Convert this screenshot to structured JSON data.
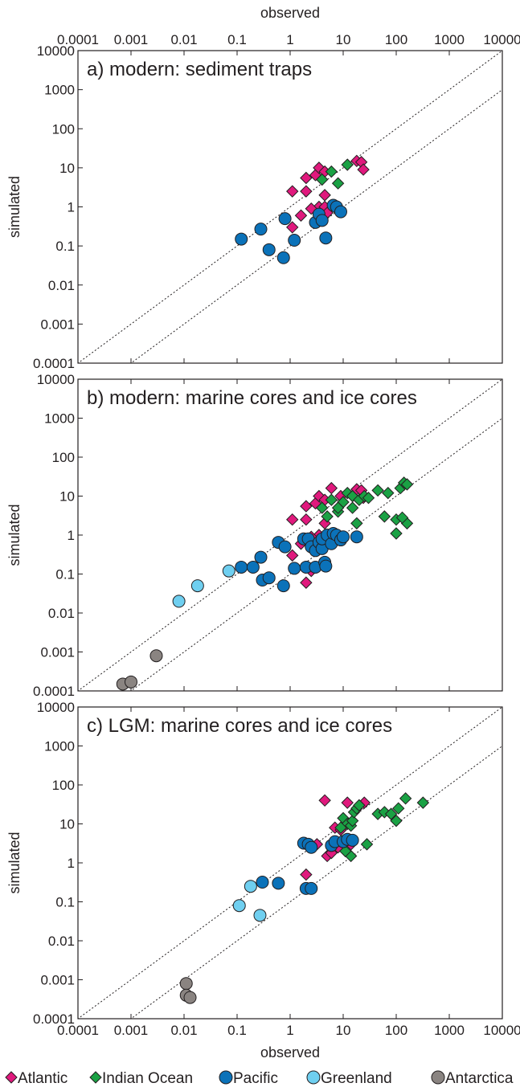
{
  "x_axis_label": "observed",
  "y_axis_label": "simulated",
  "tick_labels": [
    "0.0001",
    "0.001",
    "0.01",
    "0.1",
    "1",
    "10",
    "100",
    "1000",
    "10000"
  ],
  "legend": [
    {
      "name": "Atlantic",
      "marker": "diamond",
      "color": "#e0197d"
    },
    {
      "name": "Indian Ocean",
      "marker": "diamond",
      "color": "#1aa144"
    },
    {
      "name": "Pacific",
      "marker": "circle",
      "color": "#0b72b9"
    },
    {
      "name": "Greenland",
      "marker": "circle",
      "color": "#6fcff0"
    },
    {
      "name": "Antarctica",
      "marker": "circle",
      "color": "#8a8481"
    }
  ],
  "chart_data": [
    {
      "type": "scatter",
      "title": "a) modern: sediment traps",
      "xlabel": "observed",
      "ylabel": "simulated",
      "xscale": "log",
      "yscale": "log",
      "xlim": [
        0.0001,
        10000
      ],
      "ylim": [
        0.0001,
        10000
      ],
      "reference_lines": [
        "dotted 1:1",
        "dotted 1:10"
      ],
      "series": [
        {
          "name": "Atlantic",
          "points": [
            [
              2,
              5.5
            ],
            [
              3,
              6.5
            ],
            [
              3.5,
              10
            ],
            [
              4.5,
              8
            ],
            [
              1.1,
              2.5
            ],
            [
              2,
              2.5
            ],
            [
              3.5,
              1
            ],
            [
              4.5,
              1
            ],
            [
              2.5,
              0.9
            ],
            [
              1.6,
              0.6
            ],
            [
              1.1,
              0.3
            ],
            [
              5,
              0.7
            ],
            [
              4.5,
              2
            ],
            [
              18,
              15
            ],
            [
              22,
              14
            ],
            [
              24,
              9
            ]
          ]
        },
        {
          "name": "Indian Ocean",
          "points": [
            [
              6,
              8
            ],
            [
              4,
              5
            ],
            [
              8,
              4
            ],
            [
              12,
              12
            ]
          ]
        },
        {
          "name": "Pacific",
          "points": [
            [
              0.12,
              0.15
            ],
            [
              0.28,
              0.27
            ],
            [
              0.4,
              0.08
            ],
            [
              0.75,
              0.05
            ],
            [
              0.8,
              0.5
            ],
            [
              1.2,
              0.14
            ],
            [
              3,
              0.4
            ],
            [
              3.5,
              0.65
            ],
            [
              4,
              0.45
            ],
            [
              4.7,
              0.16
            ],
            [
              6.5,
              1.1
            ],
            [
              7.5,
              1
            ],
            [
              9,
              0.75
            ]
          ]
        }
      ]
    },
    {
      "type": "scatter",
      "title": "b) modern: marine cores and ice cores",
      "xlabel": "observed",
      "ylabel": "simulated",
      "xscale": "log",
      "yscale": "log",
      "xlim": [
        0.0001,
        10000
      ],
      "ylim": [
        0.0001,
        10000
      ],
      "reference_lines": [
        "dotted 1:1",
        "dotted 1:10"
      ],
      "series": [
        {
          "name": "Atlantic",
          "points": [
            [
              2,
              5.5
            ],
            [
              3,
              6.5
            ],
            [
              3.5,
              10
            ],
            [
              4.5,
              8
            ],
            [
              1.1,
              2.5
            ],
            [
              2,
              2.5
            ],
            [
              3.5,
              1
            ],
            [
              4.5,
              1
            ],
            [
              2.5,
              0.9
            ],
            [
              1.6,
              0.6
            ],
            [
              1.1,
              0.3
            ],
            [
              5,
              0.7
            ],
            [
              4.5,
              2
            ],
            [
              18,
              15
            ],
            [
              22,
              14
            ],
            [
              24,
              9
            ],
            [
              6,
              16
            ],
            [
              9,
              10
            ],
            [
              2,
              0.06
            ],
            [
              2.5,
              0.12
            ]
          ]
        },
        {
          "name": "Indian Ocean",
          "points": [
            [
              6,
              8
            ],
            [
              4,
              5
            ],
            [
              8,
              4
            ],
            [
              12,
              12
            ],
            [
              15,
              10
            ],
            [
              20,
              8
            ],
            [
              25,
              10
            ],
            [
              30,
              9
            ],
            [
              45,
              14
            ],
            [
              60,
              3
            ],
            [
              70,
              12
            ],
            [
              100,
              2.5
            ],
            [
              100,
              1.1
            ],
            [
              120,
              16
            ],
            [
              140,
              22
            ],
            [
              160,
              20
            ],
            [
              160,
              2
            ],
            [
              130,
              2.8
            ],
            [
              18,
              2
            ],
            [
              15,
              5
            ],
            [
              10,
              7
            ],
            [
              8,
              5
            ],
            [
              5,
              3
            ]
          ]
        },
        {
          "name": "Pacific",
          "points": [
            [
              0.12,
              0.15
            ],
            [
              0.2,
              0.15
            ],
            [
              0.28,
              0.27
            ],
            [
              0.3,
              0.07
            ],
            [
              0.4,
              0.08
            ],
            [
              0.6,
              0.65
            ],
            [
              0.75,
              0.05
            ],
            [
              0.8,
              0.5
            ],
            [
              1.2,
              0.14
            ],
            [
              1.8,
              0.8
            ],
            [
              2,
              0.15
            ],
            [
              2.2,
              0.8
            ],
            [
              2.5,
              0.5
            ],
            [
              3,
              0.4
            ],
            [
              3,
              0.15
            ],
            [
              3.5,
              0.65
            ],
            [
              4,
              0.45
            ],
            [
              4,
              0.8
            ],
            [
              4.5,
              0.2
            ],
            [
              4.7,
              0.16
            ],
            [
              5,
              1
            ],
            [
              6,
              0.6
            ],
            [
              6.5,
              1.1
            ],
            [
              7.5,
              1
            ],
            [
              9,
              0.75
            ],
            [
              10,
              0.9
            ],
            [
              18,
              0.9
            ]
          ]
        },
        {
          "name": "Greenland",
          "points": [
            [
              0.008,
              0.02
            ],
            [
              0.018,
              0.05
            ],
            [
              0.07,
              0.12
            ]
          ]
        },
        {
          "name": "Antarctica",
          "points": [
            [
              0.0007,
              0.00015
            ],
            [
              0.001,
              0.00017
            ],
            [
              0.003,
              0.0008
            ]
          ]
        }
      ]
    },
    {
      "type": "scatter",
      "title": "c) LGM: marine cores and ice cores",
      "xlabel": "observed",
      "ylabel": "simulated",
      "xscale": "log",
      "yscale": "log",
      "xlim": [
        0.0001,
        10000
      ],
      "ylim": [
        0.0001,
        10000
      ],
      "reference_lines": [
        "dotted 1:1",
        "dotted 1:10"
      ],
      "series": [
        {
          "name": "Atlantic",
          "points": [
            [
              4.5,
              40
            ],
            [
              12,
              35
            ],
            [
              25,
              35
            ],
            [
              7,
              8
            ],
            [
              9,
              7
            ],
            [
              2,
              0.5
            ],
            [
              3.2,
              3
            ],
            [
              5,
              1.5
            ],
            [
              6,
              1.8
            ],
            [
              8,
              2.5
            ],
            [
              14,
              3
            ]
          ]
        },
        {
          "name": "Indian Ocean",
          "points": [
            [
              10,
              14
            ],
            [
              12,
              10
            ],
            [
              14,
              9
            ],
            [
              15,
              12
            ],
            [
              16,
              20
            ],
            [
              18,
              25
            ],
            [
              20,
              30
            ],
            [
              28,
              3
            ],
            [
              45,
              18
            ],
            [
              60,
              20
            ],
            [
              80,
              18
            ],
            [
              100,
              12
            ],
            [
              110,
              25
            ],
            [
              150,
              45
            ],
            [
              320,
              35
            ],
            [
              14,
              1.5
            ],
            [
              9,
              8
            ],
            [
              11,
              2
            ]
          ]
        },
        {
          "name": "Pacific",
          "points": [
            [
              0.3,
              0.32
            ],
            [
              0.6,
              0.3
            ],
            [
              1.8,
              3.2
            ],
            [
              2.2,
              3
            ],
            [
              2.5,
              2.5
            ],
            [
              2,
              0.22
            ],
            [
              2.5,
              0.22
            ],
            [
              6,
              2.8
            ],
            [
              7,
              3.5
            ],
            [
              10,
              3.5
            ],
            [
              12,
              4
            ],
            [
              15,
              3.8
            ]
          ]
        },
        {
          "name": "Greenland",
          "points": [
            [
              0.11,
              0.08
            ],
            [
              0.18,
              0.25
            ],
            [
              0.27,
              0.045
            ]
          ]
        },
        {
          "name": "Antarctica",
          "points": [
            [
              0.011,
              0.0008
            ],
            [
              0.011,
              0.0004
            ],
            [
              0.013,
              0.00035
            ]
          ]
        }
      ]
    }
  ]
}
